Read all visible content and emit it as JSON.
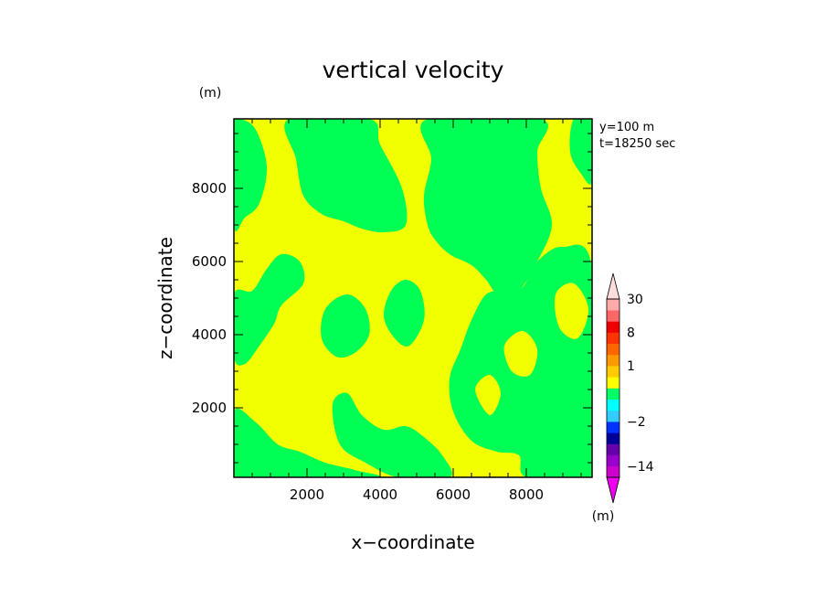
{
  "chart_data": {
    "type": "heatmap",
    "title": "vertical velocity",
    "xlabel": "x−coordinate",
    "ylabel": "z−coordinate",
    "x_unit": "(m)",
    "y_unit": "(m)",
    "xlim": [
      0,
      9800
    ],
    "ylim": [
      100,
      9900
    ],
    "x_ticks": [
      2000,
      4000,
      6000,
      8000
    ],
    "y_ticks": [
      2000,
      4000,
      6000,
      8000
    ],
    "x_tick_labels": [
      "2000",
      "4000",
      "6000",
      "8000"
    ],
    "y_tick_labels": [
      "2000",
      "4000",
      "6000",
      "8000"
    ],
    "annotations": [
      "y=100 m",
      "t=18250 sec"
    ],
    "colorbar": {
      "unit": "(m)",
      "labels": [
        "30",
        "8",
        "1",
        "−2",
        "−14"
      ],
      "label_values": [
        30,
        8,
        1,
        -2,
        -14
      ],
      "bands": [
        {
          "from": -30,
          "to": -14,
          "color": "#cc00cc"
        },
        {
          "from": -14,
          "to": -8,
          "color": "#9900cc"
        },
        {
          "from": -8,
          "to": -4,
          "color": "#6600aa"
        },
        {
          "from": -4,
          "to": -3,
          "color": "#000099"
        },
        {
          "from": -3,
          "to": -2,
          "color": "#0033ff"
        },
        {
          "from": -2,
          "to": -1,
          "color": "#33ccff"
        },
        {
          "from": -1,
          "to": -0.5,
          "color": "#00ffff"
        },
        {
          "from": -0.5,
          "to": 0,
          "color": "#00ff66"
        },
        {
          "from": 0,
          "to": 0.5,
          "color": "#ffff00"
        },
        {
          "from": 0.5,
          "to": 1,
          "color": "#ffcc00"
        },
        {
          "from": 1,
          "to": 2,
          "color": "#ff9900"
        },
        {
          "from": 2,
          "to": 4,
          "color": "#ff6600"
        },
        {
          "from": 4,
          "to": 8,
          "color": "#ff3300"
        },
        {
          "from": 8,
          "to": 14,
          "color": "#ee0000"
        },
        {
          "from": 14,
          "to": 20,
          "color": "#ff6666"
        },
        {
          "from": 20,
          "to": 30,
          "color": "#ffaaaa"
        }
      ],
      "under_color": "#ee00ee",
      "over_color": "#ffdddd"
    },
    "field_colors": {
      "positive": "#f2ff00",
      "negative": "#00ff55"
    },
    "field": {
      "description_levels": "yellow = weak upward (0 to 0.5), green = weak downward (-0.5 to 0)",
      "green_regions": [
        {
          "name": "upper-left-strip",
          "points": [
            [
              0,
              9900
            ],
            [
              200,
              9900
            ],
            [
              600,
              9600
            ],
            [
              900,
              8600
            ],
            [
              700,
              7600
            ],
            [
              300,
              7200
            ],
            [
              0,
              7000
            ]
          ]
        },
        {
          "name": "upper-center-left",
          "points": [
            [
              1500,
              9900
            ],
            [
              3700,
              9900
            ],
            [
              4000,
              9200
            ],
            [
              4600,
              8000
            ],
            [
              4700,
              7000
            ],
            [
              4100,
              6800
            ],
            [
              3500,
              6900
            ],
            [
              3000,
              7100
            ],
            [
              2400,
              7300
            ],
            [
              1900,
              7800
            ],
            [
              1700,
              8800
            ]
          ]
        },
        {
          "name": "upper-center-right",
          "points": [
            [
              5300,
              9900
            ],
            [
              8400,
              9900
            ],
            [
              8300,
              9000
            ],
            [
              8400,
              8000
            ],
            [
              8700,
              7000
            ],
            [
              8300,
              6000
            ],
            [
              7800,
              5200
            ],
            [
              7300,
              5000
            ],
            [
              6900,
              5500
            ],
            [
              6500,
              5900
            ],
            [
              5900,
              6200
            ],
            [
              5500,
              6600
            ],
            [
              5300,
              7000
            ],
            [
              5200,
              7800
            ],
            [
              5400,
              8800
            ]
          ]
        },
        {
          "name": "upper-right",
          "points": [
            [
              9300,
              9900
            ],
            [
              9800,
              9900
            ],
            [
              9800,
              8200
            ],
            [
              9500,
              8400
            ],
            [
              9200,
              9000
            ]
          ]
        },
        {
          "name": "right-middle",
          "points": [
            [
              8300,
              6000
            ],
            [
              9000,
              6400
            ],
            [
              9800,
              5800
            ],
            [
              9800,
              500
            ],
            [
              9600,
              100
            ],
            [
              8000,
              100
            ],
            [
              7800,
              700
            ],
            [
              7200,
              800
            ],
            [
              6500,
              1100
            ],
            [
              6000,
              1900
            ],
            [
              5900,
              2800
            ],
            [
              6200,
              3600
            ],
            [
              6500,
              4400
            ],
            [
              6900,
              5100
            ],
            [
              7400,
              5200
            ],
            [
              7900,
              5300
            ]
          ]
        },
        {
          "name": "left-middle",
          "points": [
            [
              0,
              5100
            ],
            [
              500,
              5200
            ],
            [
              900,
              5800
            ],
            [
              1300,
              6200
            ],
            [
              1800,
              6000
            ],
            [
              1900,
              5400
            ],
            [
              1300,
              4800
            ],
            [
              1100,
              4300
            ],
            [
              700,
              3700
            ],
            [
              300,
              3200
            ],
            [
              0,
              3400
            ]
          ]
        },
        {
          "name": "left-lower",
          "points": [
            [
              0,
              1900
            ],
            [
              600,
              1600
            ],
            [
              1200,
              1000
            ],
            [
              1800,
              800
            ],
            [
              2500,
              500
            ],
            [
              3300,
              300
            ],
            [
              3800,
              100
            ],
            [
              0,
              100
            ]
          ]
        },
        {
          "name": "center-lower",
          "points": [
            [
              2700,
              2100
            ],
            [
              3100,
              2400
            ],
            [
              3500,
              1800
            ],
            [
              4100,
              1400
            ],
            [
              4700,
              1500
            ],
            [
              5200,
              1200
            ],
            [
              5700,
              700
            ],
            [
              5900,
              100
            ],
            [
              4500,
              100
            ],
            [
              3600,
              500
            ],
            [
              2900,
              1000
            ]
          ]
        },
        {
          "name": "center-blob",
          "points": [
            [
              2500,
              4700
            ],
            [
              3100,
              5100
            ],
            [
              3600,
              4700
            ],
            [
              3700,
              4000
            ],
            [
              3300,
              3500
            ],
            [
              2800,
              3400
            ],
            [
              2400,
              3900
            ]
          ]
        },
        {
          "name": "center-blob-2",
          "points": [
            [
              4300,
              5200
            ],
            [
              4700,
              5500
            ],
            [
              5100,
              5200
            ],
            [
              5200,
              4400
            ],
            [
              4800,
              3700
            ],
            [
              4400,
              3900
            ],
            [
              4100,
              4500
            ]
          ]
        },
        {
          "name": "lower-right-island",
          "points": [
            [
              8600,
              2000
            ],
            [
              9000,
              2400
            ],
            [
              9400,
              2000
            ],
            [
              9300,
              1300
            ],
            [
              8800,
              1200
            ]
          ]
        }
      ],
      "yellow_islands": [
        {
          "name": "right-yellow-1",
          "points": [
            [
              7400,
              3700
            ],
            [
              7900,
              4100
            ],
            [
              8300,
              3600
            ],
            [
              8100,
              2900
            ],
            [
              7600,
              3000
            ]
          ]
        },
        {
          "name": "right-yellow-2",
          "points": [
            [
              8800,
              5100
            ],
            [
              9300,
              5400
            ],
            [
              9700,
              4700
            ],
            [
              9400,
              3900
            ],
            [
              8900,
              4200
            ]
          ]
        },
        {
          "name": "right-yellow-3",
          "points": [
            [
              6600,
              2500
            ],
            [
              7000,
              2900
            ],
            [
              7300,
              2400
            ],
            [
              7000,
              1800
            ]
          ]
        }
      ]
    }
  }
}
